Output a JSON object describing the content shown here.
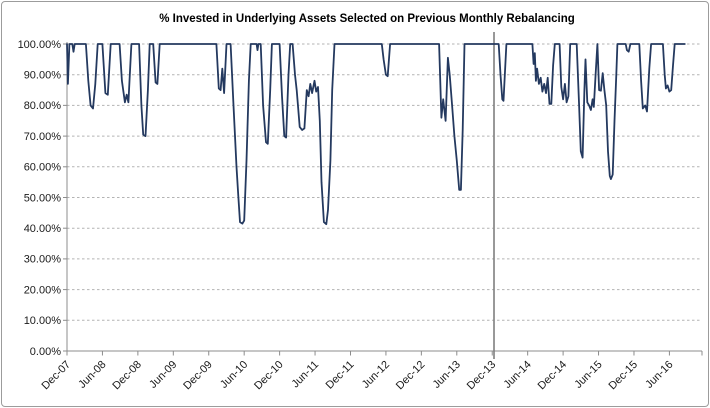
{
  "chart_data": {
    "type": "line",
    "title": "% Invested in Underlying Assets Selected on Previous Monthly Rebalancing",
    "xlabel": "",
    "ylabel": "",
    "ylim": [
      0,
      100
    ],
    "grid": "horizontal-dashed",
    "legend": "none",
    "y_tick_labels": [
      "0.00%",
      "10.00%",
      "20.00%",
      "30.00%",
      "40.00%",
      "50.00%",
      "60.00%",
      "70.00%",
      "80.00%",
      "90.00%",
      "100.00%"
    ],
    "x_tick_labels": [
      "Dec-07",
      "Jun-08",
      "Dec-08",
      "Jun-09",
      "Dec-09",
      "Jun-10",
      "Dec-10",
      "Jun-11",
      "Dec-11",
      "Jun-12",
      "Dec-12",
      "Jun-13",
      "Dec-13",
      "Jun-14",
      "Dec-14",
      "Jun-15",
      "Dec-15",
      "Jun-16"
    ],
    "x_tick_interval_months": 6,
    "x_axis_extent_months": 107.2,
    "vertical_marker": {
      "month": 72.3,
      "color": "#7f7f7f"
    },
    "colors": {
      "line": "#24395F",
      "gridline": "#b3b3b3",
      "axis": "#8c8c8c",
      "tick_text": "#1a1a1a"
    },
    "series": [
      {
        "name": "% invested in underlying assets",
        "points": [
          [
            0,
            100
          ],
          [
            0.15,
            87
          ],
          [
            0.4,
            100
          ],
          [
            0.9,
            100
          ],
          [
            1.1,
            97.5
          ],
          [
            1.3,
            100
          ],
          [
            3.2,
            100
          ],
          [
            3.6,
            88
          ],
          [
            4.0,
            80
          ],
          [
            4.4,
            79
          ],
          [
            4.8,
            87
          ],
          [
            5.2,
            100
          ],
          [
            6.0,
            100
          ],
          [
            6.5,
            84
          ],
          [
            6.9,
            83.5
          ],
          [
            7.4,
            100
          ],
          [
            8.9,
            100
          ],
          [
            9.3,
            88
          ],
          [
            9.8,
            81
          ],
          [
            10.1,
            83.5
          ],
          [
            10.4,
            81
          ],
          [
            10.9,
            100
          ],
          [
            12.2,
            100
          ],
          [
            12.6,
            80
          ],
          [
            12.9,
            70.5
          ],
          [
            13.3,
            70
          ],
          [
            13.7,
            85
          ],
          [
            14.0,
            100
          ],
          [
            14.6,
            100
          ],
          [
            15.0,
            87.5
          ],
          [
            15.3,
            87
          ],
          [
            15.7,
            100
          ],
          [
            25.3,
            100
          ],
          [
            25.7,
            85.5
          ],
          [
            26.0,
            85
          ],
          [
            26.3,
            92
          ],
          [
            26.6,
            84
          ],
          [
            27.0,
            100
          ],
          [
            27.7,
            100
          ],
          [
            28.2,
            80
          ],
          [
            28.7,
            60
          ],
          [
            29.0,
            50.5
          ],
          [
            29.3,
            42
          ],
          [
            29.7,
            41.5
          ],
          [
            30.0,
            42.5
          ],
          [
            30.4,
            62
          ],
          [
            30.8,
            88
          ],
          [
            31.1,
            100
          ],
          [
            32.1,
            100
          ],
          [
            32.25,
            98
          ],
          [
            32.4,
            100
          ],
          [
            32.8,
            100
          ],
          [
            33.2,
            80
          ],
          [
            33.7,
            68
          ],
          [
            34.0,
            67.5
          ],
          [
            34.4,
            85
          ],
          [
            34.7,
            100
          ],
          [
            36.0,
            100
          ],
          [
            36.4,
            83
          ],
          [
            36.8,
            70
          ],
          [
            37.1,
            69.5
          ],
          [
            37.5,
            90
          ],
          [
            37.8,
            100
          ],
          [
            38.2,
            100
          ],
          [
            38.6,
            90
          ],
          [
            38.9,
            85
          ],
          [
            39.4,
            73
          ],
          [
            39.8,
            72
          ],
          [
            40.2,
            72.5
          ],
          [
            40.6,
            85
          ],
          [
            40.9,
            83
          ],
          [
            41.2,
            87
          ],
          [
            41.5,
            84
          ],
          [
            41.9,
            88
          ],
          [
            42.2,
            84.5
          ],
          [
            42.5,
            86
          ],
          [
            42.8,
            75
          ],
          [
            43.1,
            55
          ],
          [
            43.5,
            42
          ],
          [
            43.9,
            41.3
          ],
          [
            44.2,
            46
          ],
          [
            44.6,
            62
          ],
          [
            44.9,
            85
          ],
          [
            45.3,
            100
          ],
          [
            53.3,
            100
          ],
          [
            53.6,
            95
          ],
          [
            54.0,
            90
          ],
          [
            54.3,
            89.5
          ],
          [
            54.7,
            100
          ],
          [
            63.0,
            100
          ],
          [
            63.4,
            76
          ],
          [
            63.7,
            82
          ],
          [
            64.1,
            75
          ],
          [
            64.5,
            95.5
          ],
          [
            64.8,
            90
          ],
          [
            65.2,
            80
          ],
          [
            65.6,
            70
          ],
          [
            66.0,
            62
          ],
          [
            66.4,
            52.5
          ],
          [
            66.7,
            52.5
          ],
          [
            67.0,
            72
          ],
          [
            67.3,
            100
          ],
          [
            73.1,
            100
          ],
          [
            73.4,
            90
          ],
          [
            73.7,
            82
          ],
          [
            73.9,
            81.5
          ],
          [
            74.4,
            100
          ],
          [
            78.8,
            100
          ],
          [
            79.0,
            93.5
          ],
          [
            79.2,
            97
          ],
          [
            79.4,
            88
          ],
          [
            79.6,
            92
          ],
          [
            79.9,
            87
          ],
          [
            80.2,
            89
          ],
          [
            80.5,
            84.5
          ],
          [
            80.8,
            87
          ],
          [
            81.1,
            84
          ],
          [
            81.4,
            89
          ],
          [
            81.7,
            80.5
          ],
          [
            82.0,
            80.5
          ],
          [
            82.3,
            93
          ],
          [
            82.6,
            100
          ],
          [
            83.4,
            100
          ],
          [
            83.7,
            86
          ],
          [
            84.0,
            82
          ],
          [
            84.3,
            87
          ],
          [
            84.6,
            81
          ],
          [
            84.9,
            83
          ],
          [
            85.2,
            100
          ],
          [
            86.3,
            100
          ],
          [
            86.7,
            80
          ],
          [
            87.0,
            65
          ],
          [
            87.3,
            63
          ],
          [
            87.6,
            85
          ],
          [
            87.8,
            95
          ],
          [
            88.1,
            81
          ],
          [
            88.4,
            80
          ],
          [
            88.7,
            78.5
          ],
          [
            89.0,
            82
          ],
          [
            89.2,
            79.5
          ],
          [
            89.5,
            90
          ],
          [
            89.8,
            100
          ],
          [
            90.1,
            85
          ],
          [
            90.4,
            84.8
          ],
          [
            90.7,
            90.5
          ],
          [
            91.0,
            85
          ],
          [
            91.3,
            80
          ],
          [
            91.6,
            65
          ],
          [
            91.9,
            57
          ],
          [
            92.1,
            56
          ],
          [
            92.4,
            57.5
          ],
          [
            92.7,
            75
          ],
          [
            93.0,
            90
          ],
          [
            93.2,
            100
          ],
          [
            94.6,
            100
          ],
          [
            94.8,
            98
          ],
          [
            95.1,
            97.5
          ],
          [
            95.4,
            100
          ],
          [
            96.9,
            100
          ],
          [
            97.2,
            88
          ],
          [
            97.5,
            79
          ],
          [
            97.9,
            80
          ],
          [
            98.2,
            78
          ],
          [
            98.6,
            92
          ],
          [
            98.9,
            100
          ],
          [
            100.9,
            100
          ],
          [
            101.2,
            90
          ],
          [
            101.4,
            85.5
          ],
          [
            101.7,
            86.5
          ],
          [
            102.0,
            84.5
          ],
          [
            102.3,
            85
          ],
          [
            102.6,
            93
          ],
          [
            102.9,
            100
          ],
          [
            104.6,
            100
          ]
        ]
      }
    ]
  }
}
